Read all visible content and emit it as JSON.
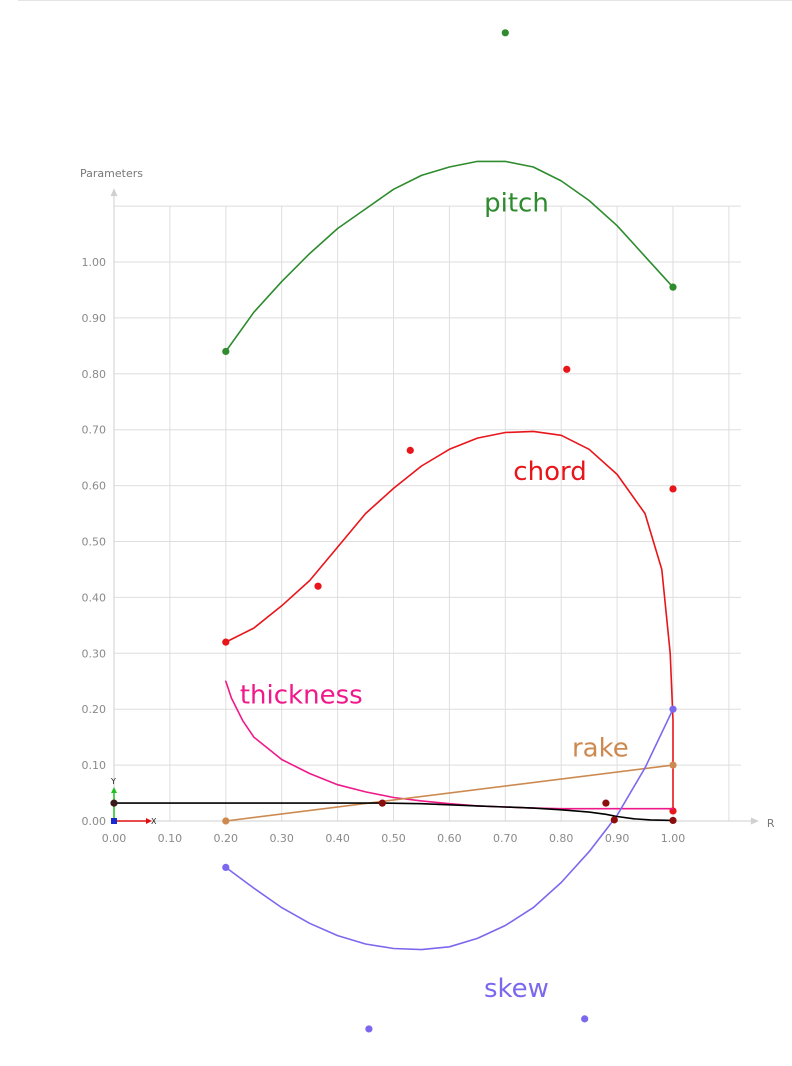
{
  "chart_data": {
    "type": "line",
    "title": "",
    "xlabel": "R",
    "ylabel": "Parameters",
    "xlim": [
      0,
      1.1
    ],
    "ylim": [
      0,
      1.1
    ],
    "x_ticks": [
      "0.00",
      "0.10",
      "0.20",
      "0.30",
      "0.40",
      "0.50",
      "0.60",
      "0.70",
      "0.80",
      "0.90",
      "1.00"
    ],
    "y_ticks": [
      "0.00",
      "0.10",
      "0.20",
      "0.30",
      "0.40",
      "0.50",
      "0.60",
      "0.70",
      "0.80",
      "0.90",
      "1.00"
    ],
    "grid": true,
    "gizmo": {
      "x_label": "X",
      "y_label": "Y"
    },
    "series": [
      {
        "name": "pitch",
        "color": "#2e8b2e",
        "curve": [
          [
            0.2,
            0.84
          ],
          [
            0.25,
            0.91
          ],
          [
            0.3,
            0.965
          ],
          [
            0.35,
            1.015
          ],
          [
            0.4,
            1.06
          ],
          [
            0.45,
            1.095
          ],
          [
            0.5,
            1.13
          ],
          [
            0.55,
            1.155
          ],
          [
            0.6,
            1.17
          ],
          [
            0.65,
            1.18
          ],
          [
            0.7,
            1.18
          ],
          [
            0.75,
            1.17
          ],
          [
            0.8,
            1.145
          ],
          [
            0.85,
            1.11
          ],
          [
            0.9,
            1.065
          ],
          [
            0.95,
            1.01
          ],
          [
            1.0,
            0.955
          ]
        ],
        "control_points": [
          [
            0.2,
            0.84
          ],
          [
            0.7,
            1.41
          ],
          [
            1.0,
            0.955
          ]
        ],
        "label_at": [
          0.72,
          1.09
        ]
      },
      {
        "name": "chord",
        "color": "#e8151a",
        "curve": [
          [
            0.2,
            0.32
          ],
          [
            0.25,
            0.345
          ],
          [
            0.3,
            0.385
          ],
          [
            0.35,
            0.43
          ],
          [
            0.4,
            0.49
          ],
          [
            0.45,
            0.55
          ],
          [
            0.5,
            0.595
          ],
          [
            0.55,
            0.635
          ],
          [
            0.6,
            0.665
          ],
          [
            0.65,
            0.685
          ],
          [
            0.7,
            0.695
          ],
          [
            0.75,
            0.697
          ],
          [
            0.8,
            0.69
          ],
          [
            0.85,
            0.665
          ],
          [
            0.9,
            0.62
          ],
          [
            0.95,
            0.55
          ],
          [
            0.98,
            0.45
          ],
          [
            0.995,
            0.3
          ],
          [
            1.0,
            0.18
          ],
          [
            1.0,
            0.018
          ]
        ],
        "control_points": [
          [
            0.2,
            0.32
          ],
          [
            0.365,
            0.42
          ],
          [
            0.53,
            0.663
          ],
          [
            0.81,
            0.808
          ],
          [
            1.0,
            0.594
          ],
          [
            1.0,
            0.018
          ]
        ],
        "label_at": [
          0.78,
          0.61
        ]
      },
      {
        "name": "thickness",
        "color": "#f0198a",
        "curve": [
          [
            0.2,
            0.25
          ],
          [
            0.21,
            0.22
          ],
          [
            0.23,
            0.18
          ],
          [
            0.25,
            0.15
          ],
          [
            0.3,
            0.11
          ],
          [
            0.35,
            0.085
          ],
          [
            0.4,
            0.065
          ],
          [
            0.45,
            0.052
          ],
          [
            0.5,
            0.042
          ],
          [
            0.55,
            0.036
          ],
          [
            0.6,
            0.031
          ],
          [
            0.65,
            0.027
          ],
          [
            0.7,
            0.025
          ],
          [
            0.75,
            0.023
          ],
          [
            0.8,
            0.022
          ],
          [
            0.85,
            0.022
          ],
          [
            0.9,
            0.022
          ],
          [
            0.95,
            0.022
          ],
          [
            1.0,
            0.022
          ]
        ],
        "control_points": [],
        "label_at": [
          0.335,
          0.21
        ]
      },
      {
        "name": "rake",
        "color": "#cd8a50",
        "curve": [
          [
            0.2,
            0.0
          ],
          [
            1.0,
            0.1
          ]
        ],
        "control_points": [
          [
            0.2,
            0.0
          ],
          [
            1.0,
            0.1
          ]
        ],
        "label_at": [
          0.87,
          0.115
        ]
      },
      {
        "name": "skew",
        "color": "#7b68ee",
        "curve": [
          [
            0.2,
            -0.083
          ],
          [
            0.25,
            -0.12
          ],
          [
            0.3,
            -0.155
          ],
          [
            0.35,
            -0.183
          ],
          [
            0.4,
            -0.205
          ],
          [
            0.45,
            -0.22
          ],
          [
            0.5,
            -0.228
          ],
          [
            0.55,
            -0.23
          ],
          [
            0.6,
            -0.225
          ],
          [
            0.65,
            -0.21
          ],
          [
            0.7,
            -0.187
          ],
          [
            0.75,
            -0.155
          ],
          [
            0.8,
            -0.11
          ],
          [
            0.85,
            -0.055
          ],
          [
            0.9,
            0.01
          ],
          [
            0.95,
            0.095
          ],
          [
            1.0,
            0.2
          ]
        ],
        "control_points": [
          [
            0.2,
            -0.083
          ],
          [
            0.456,
            -0.372
          ],
          [
            0.842,
            -0.354
          ],
          [
            1.0,
            0.2
          ]
        ],
        "label_at": [
          0.72,
          -0.315
        ]
      },
      {
        "name": "",
        "color": "#000000",
        "curve": [
          [
            0.0,
            0.032
          ],
          [
            0.1,
            0.032
          ],
          [
            0.2,
            0.032
          ],
          [
            0.3,
            0.032
          ],
          [
            0.4,
            0.032
          ],
          [
            0.48,
            0.032
          ],
          [
            0.55,
            0.031
          ],
          [
            0.6,
            0.029
          ],
          [
            0.65,
            0.027
          ],
          [
            0.7,
            0.025
          ],
          [
            0.75,
            0.023
          ],
          [
            0.8,
            0.02
          ],
          [
            0.85,
            0.016
          ],
          [
            0.88,
            0.012
          ],
          [
            0.9,
            0.008
          ],
          [
            0.93,
            0.004
          ],
          [
            0.96,
            0.002
          ],
          [
            1.0,
            0.001
          ]
        ],
        "control_points": [
          [
            0.0,
            0.032
          ],
          [
            0.48,
            0.032
          ],
          [
            0.88,
            0.032
          ],
          [
            0.895,
            0.002
          ],
          [
            1.0,
            0.001
          ]
        ],
        "point_colors": [
          "#3a1a1a",
          "#8b0d0d",
          "#8b0d0d",
          "#8b0d0d",
          "#8b0d0d"
        ],
        "label_at": null
      }
    ]
  }
}
